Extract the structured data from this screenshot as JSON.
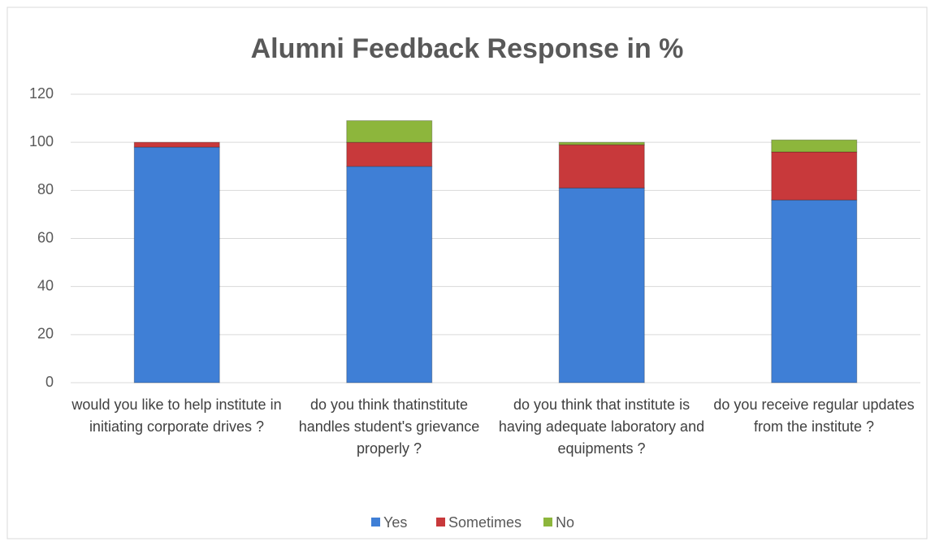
{
  "chart_data": {
    "type": "stacked_bar",
    "title": "Alumni Feedback Response in %",
    "categories": [
      "would you like to help institute in initiating corporate drives ?",
      "do you think thatinstitute handles student's grievance properly ?",
      "do you think that institute is having adequate laboratory and equipments ?",
      "do you receive regular updates from the institute ?"
    ],
    "series": [
      {
        "name": "Yes",
        "color": "#3f7fd6",
        "values": [
          98,
          90,
          81,
          76
        ]
      },
      {
        "name": "Sometimes",
        "color": "#c8393b",
        "values": [
          2,
          10,
          18,
          20
        ]
      },
      {
        "name": "No",
        "color": "#8db63c",
        "values": [
          0,
          9,
          1,
          5
        ]
      }
    ],
    "ylim": [
      0,
      120
    ],
    "yticks": [
      0,
      20,
      40,
      60,
      80,
      100,
      120
    ],
    "grid": true,
    "legend": "bottom"
  }
}
